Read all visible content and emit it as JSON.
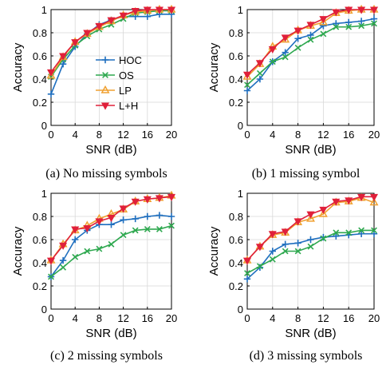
{
  "chart_data": [
    {
      "type": "line",
      "caption": "(a) No missing symbols",
      "xlabel": "SNR (dB)",
      "ylabel": "Accuracy",
      "xlim": [
        0,
        20
      ],
      "ylim": [
        0,
        1
      ],
      "xticks": [
        "0",
        "4",
        "8",
        "12",
        "16",
        "20"
      ],
      "yticks": [
        "0",
        "0.2",
        "0.4",
        "0.6",
        "0.8",
        "1"
      ],
      "grid": true,
      "legend": "center-right",
      "x": [
        0,
        2,
        4,
        6,
        8,
        10,
        12,
        14,
        16,
        18,
        20
      ],
      "series": [
        {
          "name": "HOC",
          "values": [
            0.27,
            0.53,
            0.68,
            0.79,
            0.87,
            0.91,
            0.94,
            0.94,
            0.94,
            0.96,
            0.96
          ]
        },
        {
          "name": "OS",
          "values": [
            0.42,
            0.57,
            0.69,
            0.77,
            0.83,
            0.87,
            0.92,
            0.97,
            0.98,
            0.99,
            0.99
          ]
        },
        {
          "name": "LP",
          "values": [
            0.43,
            0.59,
            0.72,
            0.79,
            0.85,
            0.9,
            0.95,
            0.98,
            0.99,
            1.0,
            1.0
          ]
        },
        {
          "name": "L+H",
          "values": [
            0.46,
            0.6,
            0.72,
            0.8,
            0.86,
            0.91,
            0.95,
            0.99,
            1.0,
            1.0,
            1.0
          ]
        }
      ]
    },
    {
      "type": "line",
      "caption": "(b) 1 missing symbol",
      "xlabel": "SNR (dB)",
      "ylabel": "Accuracy",
      "xlim": [
        0,
        20
      ],
      "ylim": [
        0,
        1
      ],
      "xticks": [
        "0",
        "4",
        "8",
        "12",
        "16",
        "20"
      ],
      "yticks": [
        "0",
        "0.2",
        "0.4",
        "0.6",
        "0.8",
        "1"
      ],
      "grid": true,
      "x": [
        0,
        2,
        4,
        6,
        8,
        10,
        12,
        14,
        16,
        18,
        20
      ],
      "series": [
        {
          "name": "HOC",
          "values": [
            0.3,
            0.4,
            0.55,
            0.63,
            0.75,
            0.78,
            0.86,
            0.88,
            0.89,
            0.9,
            0.92
          ]
        },
        {
          "name": "OS",
          "values": [
            0.35,
            0.45,
            0.55,
            0.59,
            0.67,
            0.74,
            0.79,
            0.85,
            0.85,
            0.86,
            0.88
          ]
        },
        {
          "name": "LP",
          "values": [
            0.42,
            0.53,
            0.68,
            0.74,
            0.82,
            0.86,
            0.89,
            0.97,
            0.99,
            1.0,
            1.0
          ]
        },
        {
          "name": "L+H",
          "values": [
            0.44,
            0.54,
            0.66,
            0.76,
            0.82,
            0.87,
            0.92,
            0.98,
            1.0,
            1.0,
            1.0
          ]
        }
      ]
    },
    {
      "type": "line",
      "caption": "(c) 2 missing symbols",
      "xlabel": "SNR (dB)",
      "ylabel": "Accuracy",
      "xlim": [
        0,
        20
      ],
      "ylim": [
        0,
        1
      ],
      "xticks": [
        "0",
        "4",
        "8",
        "12",
        "16",
        "20"
      ],
      "yticks": [
        "0",
        "0.2",
        "0.4",
        "0.6",
        "0.8",
        "1"
      ],
      "grid": true,
      "x": [
        0,
        2,
        4,
        6,
        8,
        10,
        12,
        14,
        16,
        18,
        20
      ],
      "series": [
        {
          "name": "HOC",
          "values": [
            0.28,
            0.42,
            0.6,
            0.68,
            0.73,
            0.73,
            0.77,
            0.78,
            0.8,
            0.81,
            0.8
          ]
        },
        {
          "name": "OS",
          "values": [
            0.28,
            0.36,
            0.45,
            0.5,
            0.52,
            0.56,
            0.64,
            0.68,
            0.69,
            0.69,
            0.72
          ]
        },
        {
          "name": "LP",
          "values": [
            0.42,
            0.56,
            0.68,
            0.72,
            0.78,
            0.82,
            0.86,
            0.93,
            0.95,
            0.96,
            0.98
          ]
        },
        {
          "name": "L+H",
          "values": [
            0.42,
            0.55,
            0.69,
            0.7,
            0.76,
            0.79,
            0.87,
            0.93,
            0.95,
            0.96,
            0.97
          ]
        }
      ]
    },
    {
      "type": "line",
      "caption": "(d) 3 missing symbols",
      "xlabel": "SNR (dB)",
      "ylabel": "Accuracy",
      "xlim": [
        0,
        20
      ],
      "ylim": [
        0,
        1
      ],
      "xticks": [
        "0",
        "4",
        "8",
        "12",
        "16",
        "20"
      ],
      "yticks": [
        "0",
        "0.2",
        "0.4",
        "0.6",
        "0.8",
        "1"
      ],
      "grid": true,
      "x": [
        0,
        2,
        4,
        6,
        8,
        10,
        12,
        14,
        16,
        18,
        20
      ],
      "series": [
        {
          "name": "HOC",
          "values": [
            0.26,
            0.36,
            0.5,
            0.56,
            0.57,
            0.6,
            0.62,
            0.63,
            0.64,
            0.65,
            0.65
          ]
        },
        {
          "name": "OS",
          "values": [
            0.31,
            0.37,
            0.43,
            0.5,
            0.5,
            0.54,
            0.61,
            0.66,
            0.66,
            0.68,
            0.68
          ]
        },
        {
          "name": "LP",
          "values": [
            0.42,
            0.54,
            0.64,
            0.66,
            0.75,
            0.78,
            0.82,
            0.92,
            0.93,
            0.96,
            0.92
          ]
        },
        {
          "name": "L+H",
          "values": [
            0.42,
            0.54,
            0.65,
            0.67,
            0.76,
            0.82,
            0.86,
            0.93,
            0.94,
            0.97,
            0.97
          ]
        }
      ]
    }
  ],
  "styles": {
    "HOC": {
      "color": "#1f6fbf",
      "marker": "plus"
    },
    "OS": {
      "color": "#2ea84f",
      "marker": "x"
    },
    "LP": {
      "color": "#f0a030",
      "marker": "triangle-up"
    },
    "L+H": {
      "color": "#e0203a",
      "marker": "triangle-down"
    }
  }
}
